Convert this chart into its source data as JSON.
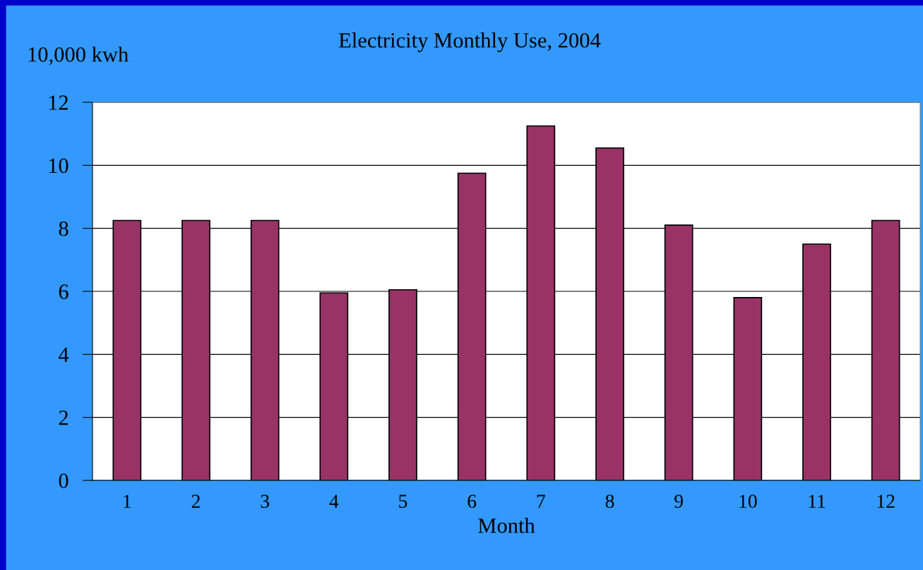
{
  "chart_data": {
    "type": "bar",
    "title": "Electricity Monthly Use, 2004",
    "ylabel": "10,000 kwh",
    "xlabel": "Month",
    "categories": [
      "1",
      "2",
      "3",
      "4",
      "5",
      "6",
      "7",
      "8",
      "9",
      "10",
      "11",
      "12"
    ],
    "series": [
      {
        "color": "#993366",
        "values": [
          8.25,
          8.25,
          8.25,
          5.95,
          6.05,
          9.75,
          11.25,
          10.55,
          8.1,
          5.8,
          7.5,
          8.25
        ]
      }
    ],
    "ylim": [
      0,
      12
    ],
    "yticks": [
      0,
      2,
      4,
      6,
      8,
      10,
      12
    ],
    "grid": "y"
  }
}
